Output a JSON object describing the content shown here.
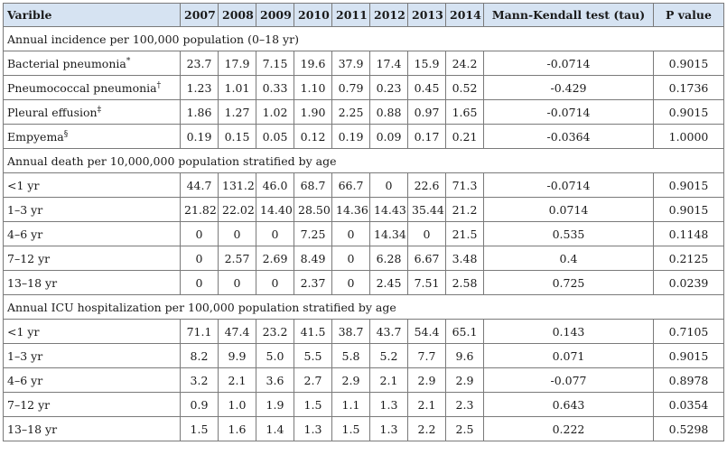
{
  "headers": [
    "Varible",
    "2007",
    "2008",
    "2009",
    "2010",
    "2011",
    "2012",
    "2013",
    "2014",
    "Mann-Kendall test (tau)",
    "P value"
  ],
  "sections": [
    {
      "title": "Annual incidence per 100,000 population (0–18 yr)",
      "rows": [
        {
          "label": "Bacterial pneumonia",
          "mark": "*",
          "values": [
            "23.7",
            "17.9",
            "7.15",
            "19.6",
            "37.9",
            "17.4",
            "15.9",
            "24.2"
          ],
          "tau": "-0.0714",
          "p": "0.9015"
        },
        {
          "label": "Pneumococcal pneumonia",
          "mark": "†",
          "values": [
            "1.23",
            "1.01",
            "0.33",
            "1.10",
            "0.79",
            "0.23",
            "0.45",
            "0.52"
          ],
          "tau": "-0.429",
          "p": "0.1736"
        },
        {
          "label": "Pleural effusion",
          "mark": "‡",
          "values": [
            "1.86",
            "1.27",
            "1.02",
            "1.90",
            "2.25",
            "0.88",
            "0.97",
            "1.65"
          ],
          "tau": "-0.0714",
          "p": "0.9015"
        },
        {
          "label": "Empyema",
          "mark": "§",
          "values": [
            "0.19",
            "0.15",
            "0.05",
            "0.12",
            "0.19",
            "0.09",
            "0.17",
            "0.21"
          ],
          "tau": "-0.0364",
          "p": "1.0000"
        }
      ]
    },
    {
      "title": "Annual death per 10,000,000 population stratified by age",
      "rows": [
        {
          "label": "<1 yr",
          "mark": "",
          "values": [
            "44.7",
            "131.2",
            "46.0",
            "68.7",
            "66.7",
            "0",
            "22.6",
            "71.3"
          ],
          "tau": "-0.0714",
          "p": "0.9015"
        },
        {
          "label": "1–3 yr",
          "mark": "",
          "values": [
            "21.82",
            "22.02",
            "14.40",
            "28.50",
            "14.36",
            "14.43",
            "35.44",
            "21.2"
          ],
          "tau": "0.0714",
          "p": "0.9015"
        },
        {
          "label": "4–6 yr",
          "mark": "",
          "values": [
            "0",
            "0",
            "0",
            "7.25",
            "0",
            "14.34",
            "0",
            "21.5"
          ],
          "tau": "0.535",
          "p": "0.1148"
        },
        {
          "label": "7–12 yr",
          "mark": "",
          "values": [
            "0",
            "2.57",
            "2.69",
            "8.49",
            "0",
            "6.28",
            "6.67",
            "3.48"
          ],
          "tau": "0.4",
          "p": "0.2125"
        },
        {
          "label": "13–18 yr",
          "mark": "",
          "values": [
            "0",
            "0",
            "0",
            "2.37",
            "0",
            "2.45",
            "7.51",
            "2.58"
          ],
          "tau": "0.725",
          "p": "0.0239"
        }
      ]
    },
    {
      "title": "Annual ICU hospitalization per 100,000 population stratified by age",
      "rows": [
        {
          "label": "<1 yr",
          "mark": "",
          "values": [
            "71.1",
            "47.4",
            "23.2",
            "41.5",
            "38.7",
            "43.7",
            "54.4",
            "65.1"
          ],
          "tau": "0.143",
          "p": "0.7105"
        },
        {
          "label": "1–3 yr",
          "mark": "",
          "values": [
            "8.2",
            "9.9",
            "5.0",
            "5.5",
            "5.8",
            "5.2",
            "7.7",
            "9.6"
          ],
          "tau": "0.071",
          "p": "0.9015"
        },
        {
          "label": "4–6 yr",
          "mark": "",
          "values": [
            "3.2",
            "2.1",
            "3.6",
            "2.7",
            "2.9",
            "2.1",
            "2.9",
            "2.9"
          ],
          "tau": "-0.077",
          "p": "0.8978"
        },
        {
          "label": "7–12 yr",
          "mark": "",
          "values": [
            "0.9",
            "1.0",
            "1.9",
            "1.5",
            "1.1",
            "1.3",
            "2.1",
            "2.3"
          ],
          "tau": "0.643",
          "p": "0.0354"
        },
        {
          "label": "13–18 yr",
          "mark": "",
          "values": [
            "1.5",
            "1.6",
            "1.4",
            "1.3",
            "1.5",
            "1.3",
            "2.2",
            "2.5"
          ],
          "tau": "0.222",
          "p": "0.5298"
        }
      ]
    }
  ]
}
